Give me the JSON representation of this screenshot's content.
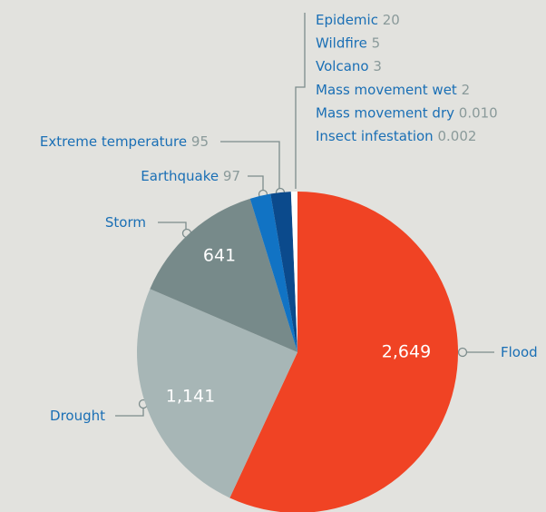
{
  "chart_data": {
    "type": "pie",
    "categories": [
      "Flood",
      "Drought",
      "Storm",
      "Earthquake",
      "Extreme temperature",
      "Epidemic",
      "Wildfire",
      "Volcano",
      "Mass movement wet",
      "Mass movement dry",
      "Insect infestation"
    ],
    "values": [
      2649,
      1141,
      641,
      97,
      95,
      20,
      5,
      3,
      2,
      0.01,
      0.002
    ],
    "value_labels": [
      "2,649",
      "1,141",
      "641",
      "97",
      "95",
      "20",
      "5",
      "3",
      "2",
      "0.010",
      "0.002"
    ],
    "colors": [
      "#f04324",
      "#a7b6b6",
      "#778a8a",
      "#1173c4",
      "#0b4a8c",
      "#ffffff",
      "#ffffff",
      "#ffffff",
      "#ffffff",
      "#ffffff",
      "#ffffff"
    ]
  }
}
